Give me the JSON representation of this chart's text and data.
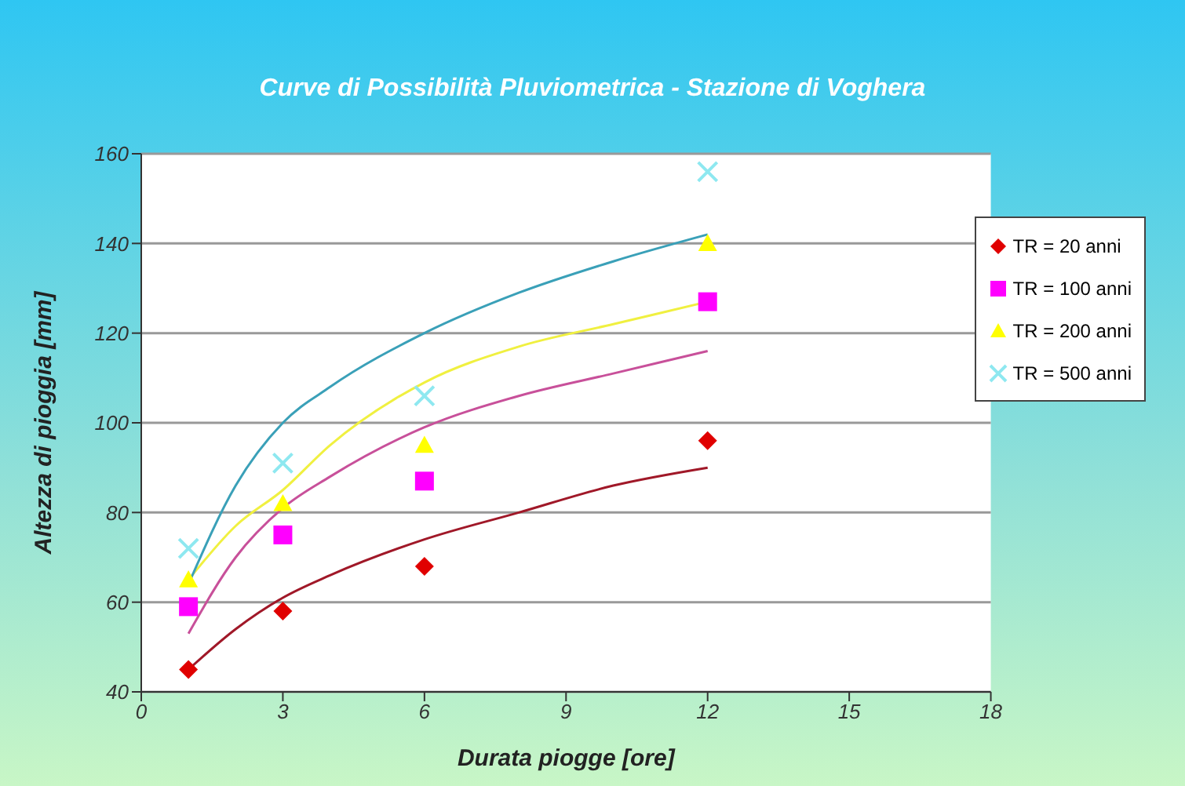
{
  "chart_data": {
    "type": "scatter",
    "title": "Curve di Possibilità Pluviometrica - Stazione di Voghera",
    "xlabel": "Durata piogge [ore]",
    "ylabel": "Altezza di pioggia [mm]",
    "xlim": [
      0,
      18
    ],
    "xticks": [
      0,
      3,
      6,
      9,
      12,
      15,
      18
    ],
    "ylim": [
      40,
      160
    ],
    "yticks": [
      40,
      60,
      80,
      100,
      120,
      140,
      160
    ],
    "grid": "y",
    "legend": "top right",
    "series": [
      {
        "name": "TR = 20 anni",
        "type": "scatter",
        "marker": "diamond",
        "color": "#e00000",
        "x": [
          1,
          3,
          6,
          12
        ],
        "values": [
          45,
          58,
          68,
          96
        ]
      },
      {
        "name": "TR = 100 anni",
        "type": "scatter",
        "marker": "square",
        "color": "#ff00ff",
        "x": [
          1,
          3,
          6,
          12
        ],
        "values": [
          59,
          75,
          87,
          127
        ]
      },
      {
        "name": "TR = 200 anni",
        "type": "scatter",
        "marker": "triangle",
        "color": "#ffff00",
        "x": [
          1,
          3,
          6,
          12
        ],
        "values": [
          65,
          82,
          95,
          140
        ]
      },
      {
        "name": "TR = 500 anni",
        "type": "scatter",
        "marker": "cross",
        "color": "#8ee8f0",
        "x": [
          1,
          3,
          6,
          12
        ],
        "values": [
          72,
          91,
          106,
          156
        ]
      },
      {
        "type": "line",
        "marker": "none",
        "color": "#a01828",
        "x": [
          1,
          2,
          3,
          4,
          6,
          8,
          10,
          12
        ],
        "values": [
          45,
          54,
          61,
          66,
          74,
          80,
          86,
          90
        ]
      },
      {
        "type": "line",
        "marker": "none",
        "color": "#c8509a",
        "x": [
          1,
          2,
          3,
          4,
          6,
          8,
          10,
          12
        ],
        "values": [
          53,
          70,
          81,
          88,
          99,
          106,
          111,
          116
        ]
      },
      {
        "type": "line",
        "marker": "none",
        "color": "#f0f040",
        "x": [
          1,
          2,
          3,
          4,
          6,
          8,
          10,
          12
        ],
        "values": [
          65,
          77,
          85,
          95,
          109,
          117,
          122,
          127
        ]
      },
      {
        "type": "line",
        "marker": "none",
        "color": "#3aa0b8",
        "x": [
          1,
          2,
          3,
          4,
          6,
          8,
          10,
          12
        ],
        "values": [
          64,
          86,
          100,
          108,
          120,
          129,
          136,
          142
        ]
      }
    ]
  }
}
